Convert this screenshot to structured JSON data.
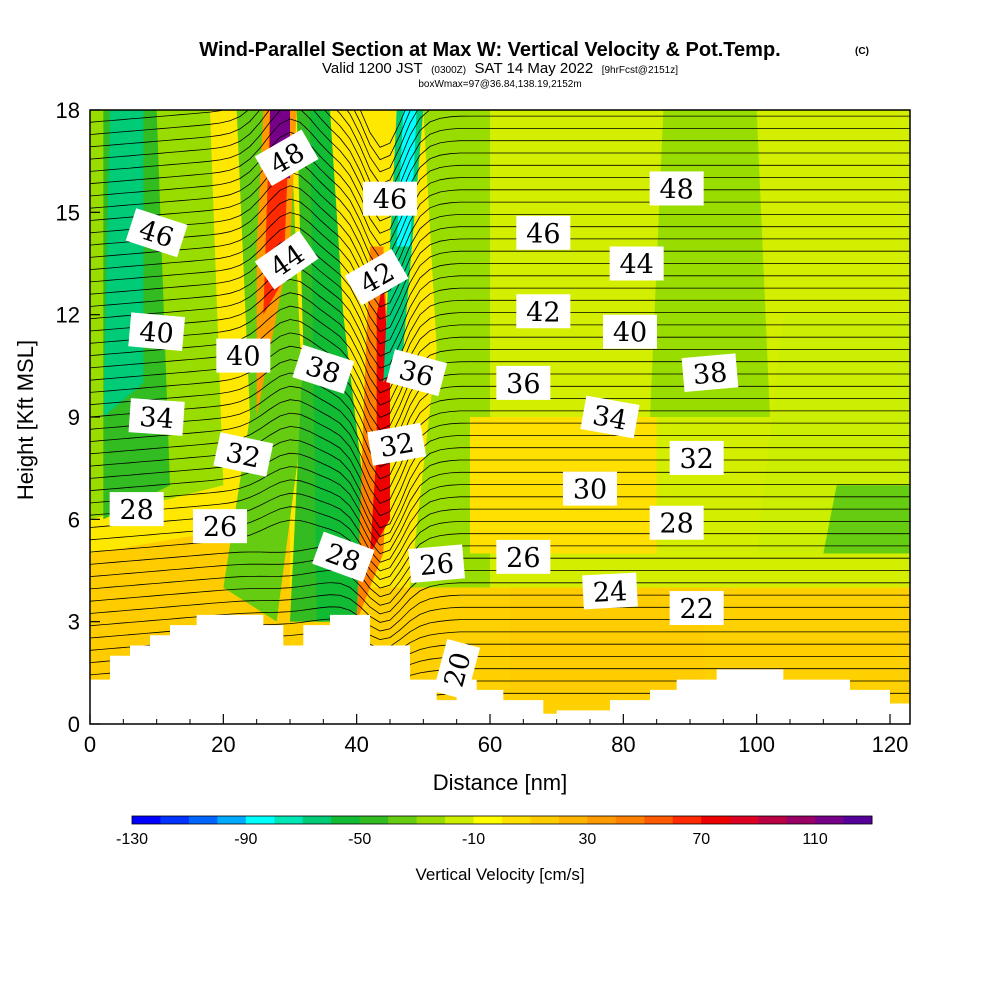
{
  "title": {
    "main": "Wind-Parallel Section at Max W: Vertical Velocity & Pot.Temp.",
    "copyright": "(C)",
    "valid_prefix": "Valid 1200 JST",
    "valid_utc": "(0300Z)",
    "valid_date": "SAT 14 May 2022",
    "forecast": "[9hrFcst@2151z]",
    "box_info": "boxWmax=97@36.84,138.19,2152m"
  },
  "chart_data": {
    "type": "heatmap",
    "xlabel": "Distance [nm]",
    "ylabel": "Height [Kft MSL]",
    "xlim": [
      0,
      123
    ],
    "ylim": [
      0,
      18
    ],
    "x_ticks": [
      0,
      20,
      40,
      60,
      80,
      100,
      120
    ],
    "y_ticks": [
      0,
      3,
      6,
      9,
      12,
      15,
      18
    ],
    "x_tick_labels": [
      "0",
      "20",
      "40",
      "60",
      "80",
      "100",
      "120"
    ],
    "y_tick_labels": [
      "0",
      "3",
      "6",
      "9",
      "12",
      "15",
      "18"
    ],
    "colorbar": {
      "title": "Vertical Velocity [cm/s]",
      "range": [
        -130,
        130
      ],
      "step": 10,
      "tick_values": [
        -130,
        -90,
        -50,
        -10,
        30,
        70,
        110
      ],
      "tick_labels": [
        "-130",
        "-90",
        "-50",
        "-10",
        "30",
        "70",
        "110"
      ],
      "colors": [
        "#0000ff",
        "#0033ff",
        "#0066ff",
        "#00aaff",
        "#00ffff",
        "#00e6b4",
        "#00cc78",
        "#11bb33",
        "#33bb22",
        "#66cc11",
        "#99dd00",
        "#ccee00",
        "#ffff00",
        "#ffe000",
        "#ffcc00",
        "#ffb400",
        "#ff9a00",
        "#ff8000",
        "#ff5a00",
        "#ff2a00",
        "#ee0000",
        "#dd0022",
        "#bb0044",
        "#990066",
        "#770088",
        "#550099"
      ]
    },
    "terrain_kft": [
      [
        0,
        1.3
      ],
      [
        3,
        1.3
      ],
      [
        3,
        2.0
      ],
      [
        6,
        2.0
      ],
      [
        6,
        2.3
      ],
      [
        9,
        2.3
      ],
      [
        9,
        2.6
      ],
      [
        12,
        2.6
      ],
      [
        12,
        2.9
      ],
      [
        16,
        2.9
      ],
      [
        16,
        3.2
      ],
      [
        26,
        3.2
      ],
      [
        26,
        2.9
      ],
      [
        29,
        2.9
      ],
      [
        29,
        2.3
      ],
      [
        32,
        2.3
      ],
      [
        32,
        2.9
      ],
      [
        36,
        2.9
      ],
      [
        36,
        3.2
      ],
      [
        42,
        3.2
      ],
      [
        42,
        2.3
      ],
      [
        48,
        2.3
      ],
      [
        48,
        1.3
      ],
      [
        52,
        1.3
      ],
      [
        52,
        0.7
      ],
      [
        55,
        0.7
      ],
      [
        55,
        1.3
      ],
      [
        58,
        1.3
      ],
      [
        58,
        1.0
      ],
      [
        62,
        1.0
      ],
      [
        62,
        0.7
      ],
      [
        68,
        0.7
      ],
      [
        68,
        0.3
      ],
      [
        70,
        0.3
      ],
      [
        70,
        0.4
      ],
      [
        78,
        0.4
      ],
      [
        78,
        0.7
      ],
      [
        84,
        0.7
      ],
      [
        84,
        1.0
      ],
      [
        88,
        1.0
      ],
      [
        88,
        1.3
      ],
      [
        94,
        1.3
      ],
      [
        94,
        1.6
      ],
      [
        104,
        1.6
      ],
      [
        104,
        1.3
      ],
      [
        114,
        1.3
      ],
      [
        114,
        1.0
      ],
      [
        120,
        1.0
      ],
      [
        120,
        0.6
      ],
      [
        123,
        0.6
      ]
    ],
    "contour_labels": [
      {
        "x": 29.5,
        "y": 16.6,
        "text": "48",
        "angle": -30
      },
      {
        "x": 88,
        "y": 15.7,
        "text": "48",
        "angle": 0
      },
      {
        "x": 10,
        "y": 14.4,
        "text": "46",
        "angle": 18
      },
      {
        "x": 45,
        "y": 15.4,
        "text": "46",
        "angle": 0
      },
      {
        "x": 68,
        "y": 14.4,
        "text": "46",
        "angle": 0
      },
      {
        "x": 29.5,
        "y": 13.6,
        "text": "44",
        "angle": -35
      },
      {
        "x": 82,
        "y": 13.5,
        "text": "44",
        "angle": 0
      },
      {
        "x": 43,
        "y": 13.1,
        "text": "42",
        "angle": -30
      },
      {
        "x": 68,
        "y": 12.1,
        "text": "42",
        "angle": 0
      },
      {
        "x": 10,
        "y": 11.5,
        "text": "40",
        "angle": 5
      },
      {
        "x": 23,
        "y": 10.8,
        "text": "40",
        "angle": 0
      },
      {
        "x": 81,
        "y": 11.5,
        "text": "40",
        "angle": 0
      },
      {
        "x": 35,
        "y": 10.4,
        "text": "38",
        "angle": 18
      },
      {
        "x": 93,
        "y": 10.3,
        "text": "38",
        "angle": -5
      },
      {
        "x": 49,
        "y": 10.3,
        "text": "36",
        "angle": 15
      },
      {
        "x": 65,
        "y": 10.0,
        "text": "36",
        "angle": 0
      },
      {
        "x": 10,
        "y": 9.0,
        "text": "34",
        "angle": 4
      },
      {
        "x": 78,
        "y": 9.0,
        "text": "34",
        "angle": 10
      },
      {
        "x": 23,
        "y": 7.9,
        "text": "32",
        "angle": 12
      },
      {
        "x": 46,
        "y": 8.2,
        "text": "32",
        "angle": -10
      },
      {
        "x": 91,
        "y": 7.8,
        "text": "32",
        "angle": 0
      },
      {
        "x": 75,
        "y": 6.9,
        "text": "30",
        "angle": 0
      },
      {
        "x": 7,
        "y": 6.3,
        "text": "28",
        "angle": 0
      },
      {
        "x": 88,
        "y": 5.9,
        "text": "28",
        "angle": 0
      },
      {
        "x": 38,
        "y": 4.9,
        "text": "28",
        "angle": 20
      },
      {
        "x": 19.5,
        "y": 5.8,
        "text": "26",
        "angle": 0
      },
      {
        "x": 52,
        "y": 4.7,
        "text": "26",
        "angle": -5
      },
      {
        "x": 65,
        "y": 4.9,
        "text": "26",
        "angle": 0
      },
      {
        "x": 78,
        "y": 3.9,
        "text": "24",
        "angle": -3
      },
      {
        "x": 91,
        "y": 3.4,
        "text": "22",
        "angle": 0
      },
      {
        "x": 55,
        "y": 1.6,
        "text": "20",
        "angle": -75
      }
    ]
  }
}
